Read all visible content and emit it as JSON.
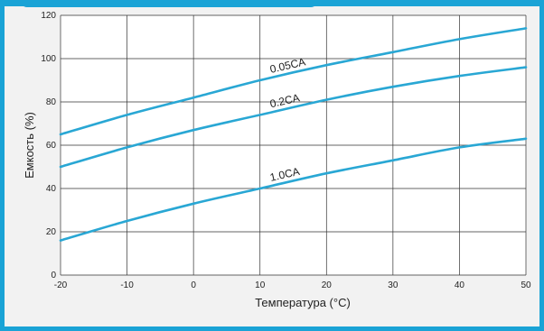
{
  "colors": {
    "frame": "#1aa3d6",
    "grid": "#333333",
    "series": "#29a7d4"
  },
  "chart_data": {
    "type": "line",
    "title": "",
    "xlabel": "Температура (°C)",
    "ylabel": "Емкость (%)",
    "xlim": [
      -20,
      50
    ],
    "ylim": [
      0,
      120
    ],
    "xticks": [
      -20,
      -10,
      0,
      10,
      20,
      30,
      40,
      50
    ],
    "yticks": [
      0,
      20,
      40,
      60,
      80,
      100,
      120
    ],
    "grid": true,
    "series": [
      {
        "name": "0.05CA",
        "x": [
          -20,
          -10,
          0,
          10,
          20,
          30,
          40,
          50
        ],
        "y": [
          65,
          74,
          82,
          90,
          97,
          103,
          109,
          114
        ]
      },
      {
        "name": "0.2CA",
        "x": [
          -20,
          -10,
          0,
          10,
          20,
          30,
          40,
          50
        ],
        "y": [
          50,
          59,
          67,
          74,
          81,
          87,
          92,
          96
        ]
      },
      {
        "name": "1.0CA",
        "x": [
          -20,
          -10,
          0,
          10,
          20,
          30,
          40,
          50
        ],
        "y": [
          16,
          25,
          33,
          40,
          47,
          53,
          59,
          63
        ]
      }
    ]
  }
}
